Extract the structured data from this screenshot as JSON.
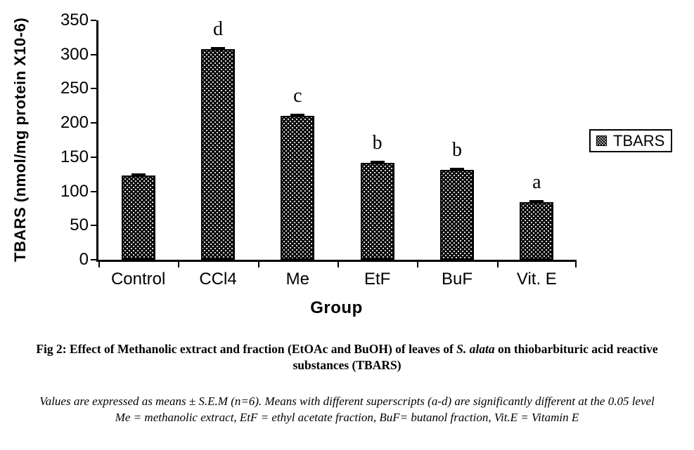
{
  "chart_data": {
    "type": "bar",
    "categories": [
      "Control",
      "CCl4",
      "Me",
      "EtF",
      "BuF",
      "Vit. E"
    ],
    "values": [
      123,
      308,
      210,
      142,
      131,
      84
    ],
    "superscripts": [
      "",
      "d",
      "c",
      "b",
      "b",
      "a"
    ],
    "xlabel": "Group",
    "ylabel": "TBARS (nmol/mg protein X10-6)",
    "ylim": [
      0,
      350
    ],
    "ytick_step": 50,
    "grid": false,
    "error_caps": true,
    "legend": {
      "label": "TBARS",
      "position": "right-middle"
    },
    "colors": {
      "bar_fill": "#0a0a0a",
      "bar_dot_pattern": "#d9d9d9",
      "axis": "#000000",
      "text": "#000000",
      "background": "#ffffff"
    }
  },
  "caption": {
    "text_before": "Fig 2: Effect of Methanolic extract and fraction (EtOAc and BuOH) of leaves of ",
    "species": "S. alata",
    "text_after": " on thiobarbituric acid reactive substances (TBARS)"
  },
  "notes": {
    "line1": "Values are expressed as means ± S.E.M (n=6). Means with different superscripts (a-d) are significantly different at the 0.05 level",
    "line2": "Me = methanolic extract, EtF = ethyl acetate fraction, BuF= butanol fraction, Vit.E = Vitamin E"
  }
}
